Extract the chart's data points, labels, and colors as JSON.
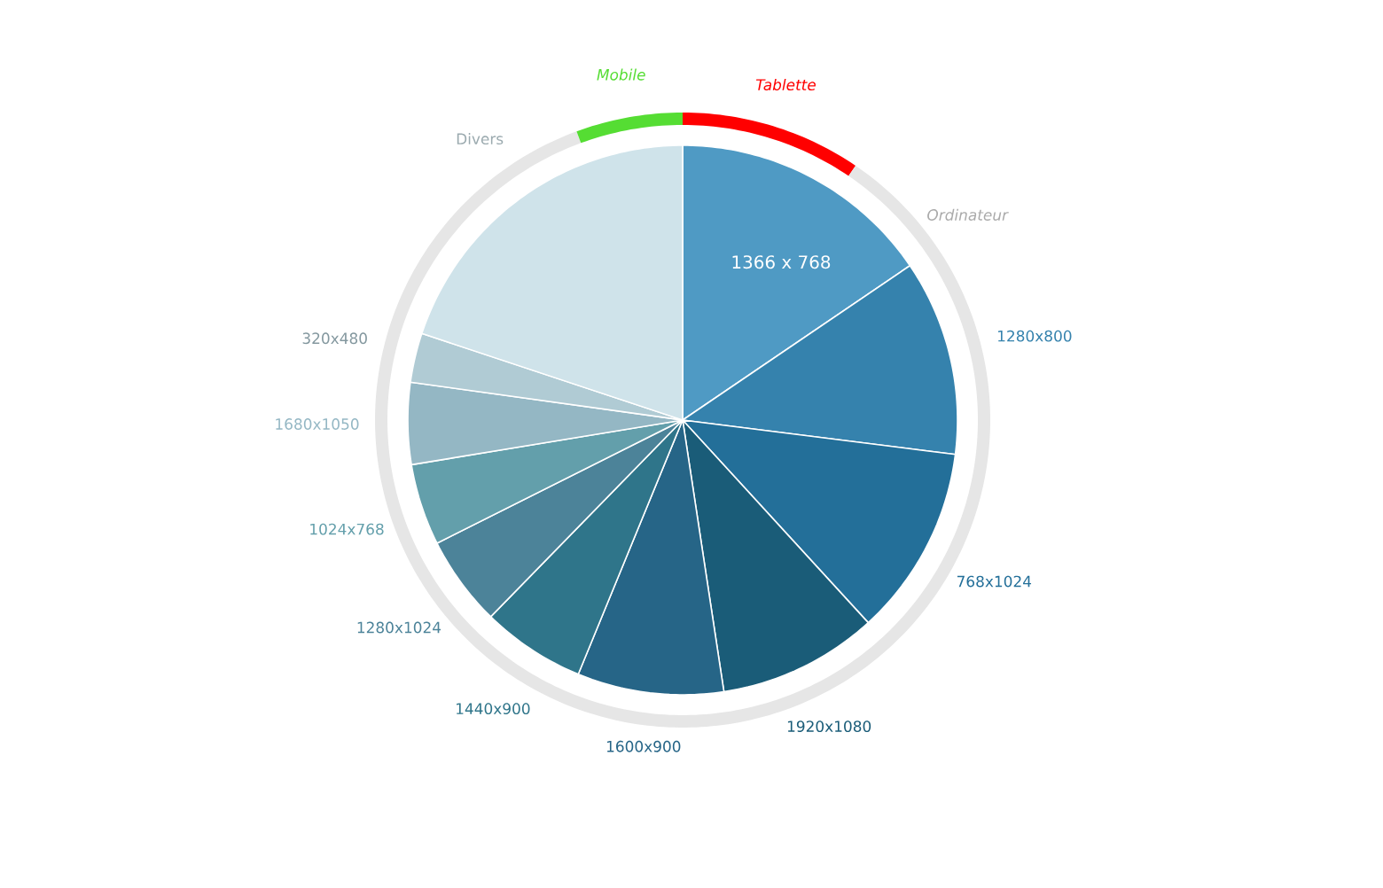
{
  "chart_data": [
    {
      "type": "pie",
      "categories": [
        "1366 x 768",
        "1280x800",
        "768x1024",
        "1920x1080",
        "1600x900",
        "1440x900",
        "1280x1024",
        "1024x768",
        "1680x1050",
        "320x480",
        "Divers"
      ],
      "values": [
        15.5,
        11.5,
        11.2,
        9.4,
        8.6,
        6.1,
        5.3,
        4.8,
        4.8,
        2.9,
        19.9
      ],
      "colors": [
        "#4f9ac4",
        "#3582ad",
        "#236f99",
        "#1a5c78",
        "#266587",
        "#2f758a",
        "#4c8399",
        "#639fab",
        "#94b7c4",
        "#b0cbd4",
        "#cfe3ea"
      ]
    },
    {
      "type": "donut",
      "categories": [
        "Tablette",
        "Ordinateur",
        "Mobile"
      ],
      "values": [
        9.5,
        84.9,
        5.6
      ],
      "colors": [
        "#ff0000",
        "#e6e6e6",
        "#55dd33"
      ]
    }
  ]
}
